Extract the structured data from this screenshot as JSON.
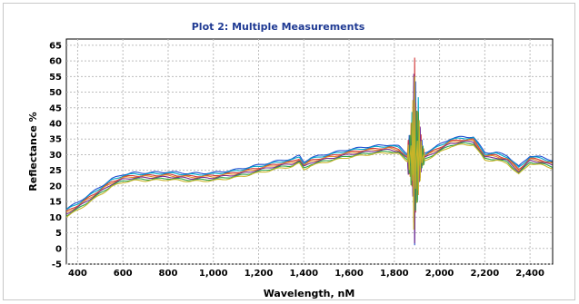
{
  "chart_data": {
    "type": "line",
    "title": "Plot 2: Multiple Measurements",
    "xlabel": "Wavelength, nM",
    "ylabel": "Reflectance %",
    "xlim": [
      350,
      2500
    ],
    "ylim": [
      -5,
      67
    ],
    "xticks": [
      400,
      600,
      800,
      1000,
      1200,
      1400,
      1600,
      1800,
      2000,
      2200,
      2400
    ],
    "xtick_labels": [
      "400",
      "600",
      "800",
      "1,000",
      "1,200",
      "1,400",
      "1,600",
      "1,800",
      "2,000",
      "2,200",
      "2,400"
    ],
    "yticks": [
      -5,
      0,
      5,
      10,
      15,
      20,
      25,
      30,
      35,
      40,
      45,
      50,
      55,
      60,
      65
    ],
    "ytick_labels": [
      "-5",
      "0",
      "5",
      "10",
      "15",
      "20",
      "25",
      "30",
      "35",
      "40",
      "45",
      "50",
      "55",
      "60",
      "65"
    ],
    "grid": true,
    "legend": "none",
    "base_curve": {
      "x": [
        350,
        400,
        450,
        500,
        550,
        600,
        650,
        700,
        800,
        900,
        1000,
        1100,
        1200,
        1300,
        1350,
        1380,
        1400,
        1430,
        1500,
        1600,
        1700,
        1780,
        1820,
        1850,
        1900,
        1950,
        2000,
        2050,
        2100,
        2150,
        2200,
        2250,
        2300,
        2350,
        2380,
        2400,
        2450,
        2500
      ],
      "y": [
        11.5,
        13.5,
        16,
        18.5,
        21,
        22.5,
        23,
        23,
        23.3,
        22.8,
        23,
        24,
        25.5,
        27,
        27.5,
        28.5,
        26.5,
        27.8,
        29,
        30.5,
        31.5,
        32,
        31.5,
        29.5,
        28,
        30,
        32,
        34,
        34.5,
        34.5,
        29.5,
        29.5,
        28.5,
        25,
        27,
        28.5,
        28,
        27
      ]
    },
    "series": [
      {
        "color": "#1f4fd1",
        "offset": 1.2
      },
      {
        "color": "#00a6c8",
        "offset": 0.8
      },
      {
        "color": "#d23a3a",
        "offset": 0.3
      },
      {
        "color": "#e08a2a",
        "offset": 0.0
      },
      {
        "color": "#7a2a8c",
        "offset": -0.4
      },
      {
        "color": "#2da34a",
        "offset": -0.9
      },
      {
        "color": "#c8b428",
        "offset": -1.3
      }
    ],
    "noise_region": {
      "x": [
        1860,
        1870,
        1880,
        1885,
        1890,
        1895,
        1900,
        1905,
        1910,
        1920,
        1930
      ],
      "y_hi": [
        34,
        37,
        45,
        55,
        61,
        52,
        40,
        50,
        42,
        35,
        32
      ],
      "y_lo": [
        24,
        22,
        18,
        8,
        0,
        10,
        15,
        14,
        20,
        25,
        27
      ]
    }
  }
}
